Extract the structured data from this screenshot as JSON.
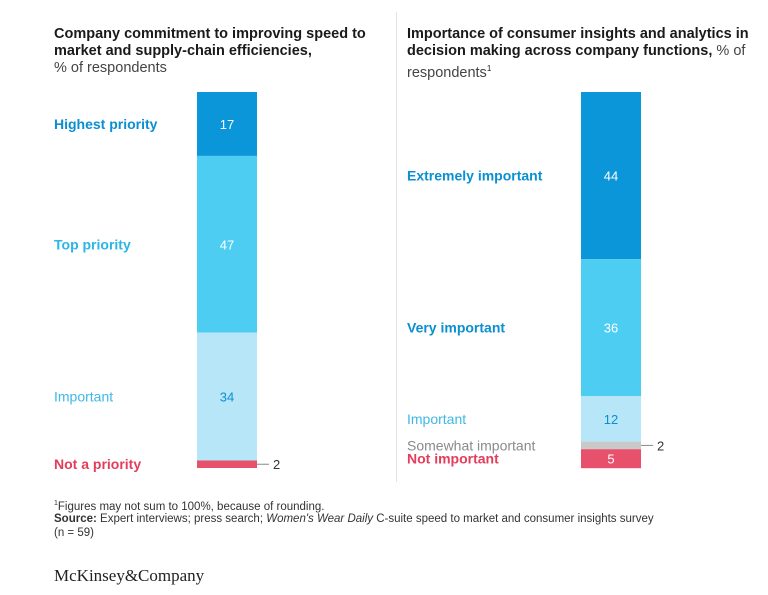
{
  "colors": {
    "highest": "#0a96d8",
    "top": "#4dcdf2",
    "important": "#b6e6f7",
    "not": "#e8516b",
    "somewhat": "#c9c9c9",
    "label_dark_blue": "#0a8fd1",
    "label_mid_blue": "#2ab6e6",
    "label_light_blue": "#3fb8e6",
    "label_red": "#e23d5a",
    "label_gray": "#8a8a8a"
  },
  "left_title": {
    "bold": "Company commitment to improving speed to market and supply-chain efficiencies,",
    "sub": "% of respondents"
  },
  "right_title": {
    "bold": "Importance of consumer insights and analytics in decision making across company functions,",
    "sub": "% of respondents",
    "sup": "1"
  },
  "chart_data": [
    {
      "type": "bar",
      "stacked": true,
      "title": "Company commitment to improving speed to market and supply-chain efficiencies, % of respondents",
      "unit": "% of respondents",
      "categories": [
        "Highest priority",
        "Top priority",
        "Important",
        "Not a priority"
      ],
      "values": [
        17,
        47,
        34,
        2
      ],
      "value_labels": [
        "17",
        "47",
        "34",
        "2"
      ]
    },
    {
      "type": "bar",
      "stacked": true,
      "title": "Importance of consumer insights and analytics in decision making across company functions, % of respondents",
      "unit": "% of respondents",
      "categories": [
        "Extremely important",
        "Very important",
        "Important",
        "Somewhat important",
        "Not important"
      ],
      "values": [
        44,
        36,
        12,
        2,
        5
      ],
      "value_labels": [
        "44",
        "36",
        "12",
        "2",
        "5"
      ]
    }
  ],
  "footer": {
    "note_sup": "1",
    "note": "Figures may not sum to 100%, because of rounding.",
    "source_label": "Source:",
    "source_text_1": "Expert interviews; press search;",
    "source_italic": "Women's Wear Daily",
    "source_text_2": "C-suite speed to market and consumer insights survey (n = 59)"
  },
  "logo": "McKinsey&Company"
}
